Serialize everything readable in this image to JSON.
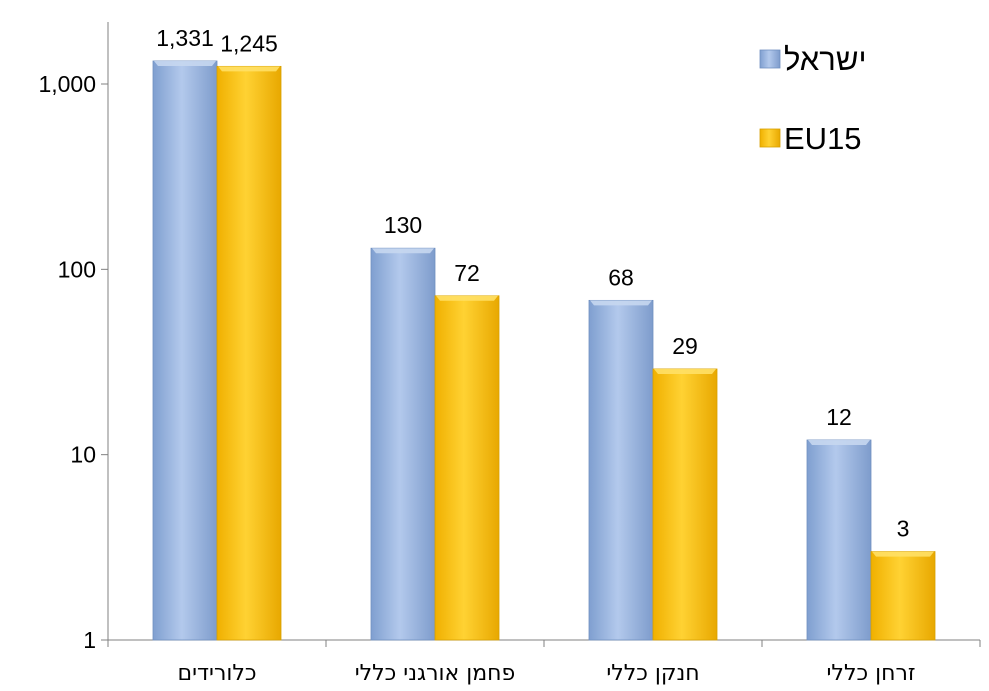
{
  "chart_data": {
    "type": "bar",
    "title": "",
    "xlabel": "",
    "ylabel": "",
    "y_scale": "log",
    "ylim": [
      1,
      2000
    ],
    "y_ticks": [
      {
        "value": 1,
        "label": "1"
      },
      {
        "value": 10,
        "label": "10"
      },
      {
        "value": 100,
        "label": "100"
      },
      {
        "value": 1000,
        "label": "1,000"
      }
    ],
    "categories": [
      "כלורידים",
      "פחמן אורגני כללי",
      "חנקן כללי",
      "זרחן כללי"
    ],
    "series": [
      {
        "name": "ישראל",
        "color": "#9bb7e0",
        "values": [
          1331,
          130,
          68,
          12
        ],
        "labels": [
          "1,331",
          "130",
          "68",
          "12"
        ]
      },
      {
        "name": "EU15",
        "color": "#fbc600",
        "values": [
          1245,
          72,
          29,
          3
        ],
        "labels": [
          "1,245",
          "72",
          "29",
          "3"
        ]
      }
    ],
    "legend_position": "top-right",
    "grid": false
  }
}
